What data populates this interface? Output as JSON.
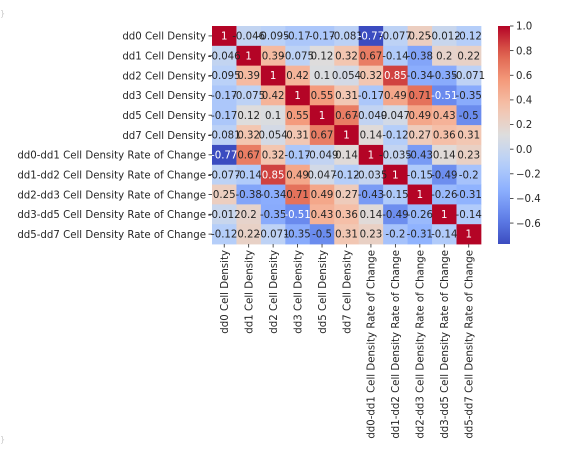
{
  "chart_data": {
    "type": "heatmap",
    "title": "",
    "xlabel": "",
    "ylabel": "",
    "labels": [
      "dd0 Cell Density",
      "dd1 Cell Density",
      "dd2 Cell Density",
      "dd3 Cell Density",
      "dd5 Cell Density",
      "dd7 Cell Density",
      "dd0-dd1 Cell Density Rate of Change",
      "dd1-dd2 Cell Density Rate of Change",
      "dd2-dd3 Cell Density Rate of Change",
      "dd3-dd5 Cell Density Rate of Change",
      "dd5-dd7 Cell Density Rate of Change"
    ],
    "cells": [
      [
        "1",
        "-0.046",
        "-0.095",
        "-0.17",
        "-0.17",
        "-0.081",
        "-0.77",
        "-0.077",
        "0.25",
        "-0.012",
        "-0.12"
      ],
      [
        "-0.046",
        "1",
        "0.39",
        "-0.075",
        "0.12",
        "0.32",
        "0.67",
        "-0.14",
        "-0.38",
        "0.2",
        "0.22"
      ],
      [
        "-0.095",
        "0.39",
        "1",
        "0.42",
        "0.1",
        "0.054",
        "0.32",
        "0.85",
        "-0.34",
        "-0.35",
        "-0.071"
      ],
      [
        "-0.17",
        "-0.075",
        "0.42",
        "1",
        "0.55",
        "0.31",
        "-0.17",
        "0.49",
        "0.71",
        "-0.51",
        "-0.35"
      ],
      [
        "-0.17",
        "0.12",
        "0.1",
        "0.55",
        "1",
        "0.67",
        "-0.049",
        "0.047",
        "0.49",
        "0.43",
        "-0.5"
      ],
      [
        "-0.081",
        "0.32",
        "0.054",
        "0.31",
        "0.67",
        "1",
        "0.14",
        "-0.12",
        "0.27",
        "0.36",
        "0.31"
      ],
      [
        "-0.77",
        "0.67",
        "0.32",
        "-0.17",
        "-0.049",
        "0.14",
        "1",
        "-0.035",
        "-0.43",
        "0.14",
        "0.23"
      ],
      [
        "-0.077",
        "-0.14",
        "0.85",
        "0.49",
        "0.047",
        "-0.12",
        "-0.035",
        "1",
        "-0.15",
        "-0.49",
        "-0.2"
      ],
      [
        "0.25",
        "-0.38",
        "-0.34",
        "0.71",
        "0.49",
        "0.27",
        "-0.43",
        "-0.15",
        "1",
        "-0.26",
        "-0.31"
      ],
      [
        "-0.012",
        "0.2",
        "-0.35",
        "-0.51",
        "0.43",
        "0.36",
        "0.14",
        "-0.49",
        "-0.26",
        "1",
        "-0.14"
      ],
      [
        "-0.12",
        "0.22",
        "-0.071",
        "-0.35",
        "-0.5",
        "0.31",
        "0.23",
        "-0.2",
        "-0.31",
        "-0.14",
        "1"
      ]
    ],
    "colorbar": {
      "colormap": "coolwarm",
      "range": [
        -0.77,
        1.0
      ],
      "ticks": [
        "1.0",
        "0.8",
        "0.6",
        "0.4",
        "0.2",
        "0.0",
        "−0.2",
        "−0.4",
        "−0.6"
      ],
      "tick_values": [
        1.0,
        0.8,
        0.6,
        0.4,
        0.2,
        0.0,
        -0.2,
        -0.4,
        -0.6
      ]
    },
    "edge_marks": [
      "}",
      "}"
    ]
  }
}
